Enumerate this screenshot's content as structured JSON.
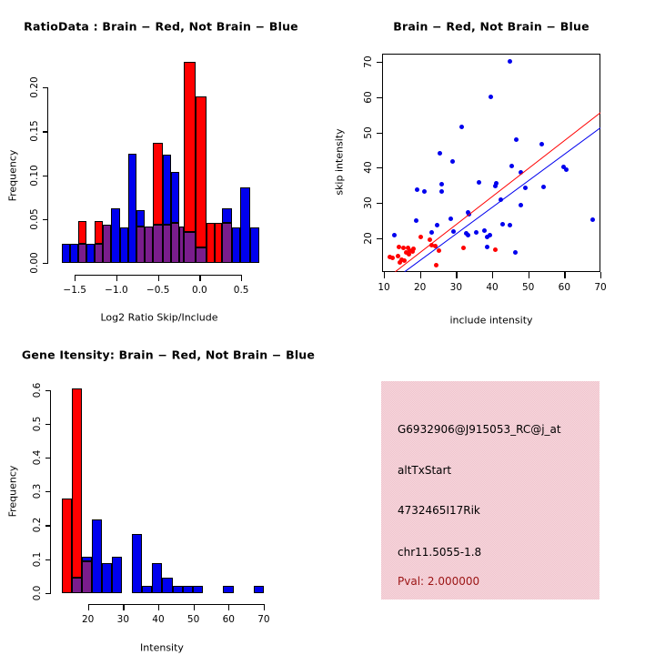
{
  "colors": {
    "red": "#ff0000",
    "blue": "#0000ee",
    "purple": "#7a1d8c",
    "pval_red": "#9b1414",
    "pink_panel": "#f3c9d3",
    "axis_black": "#000000",
    "background": "#ffffff"
  },
  "chart_data": [
    {
      "id": "ratio_histogram",
      "type": "bar",
      "title": "RatioData : Brain − Red, Not Brain − Blue",
      "xlabel": "Log2 Ratio Skip/Include",
      "ylabel": "Frequency",
      "legend_note": "red = Brain, blue = Not Brain, purple = overlap",
      "xlim": [
        -1.7,
        0.8
      ],
      "ylim": [
        0,
        0.24
      ],
      "x_ticks": [
        {
          "v": -1.5,
          "label": "−1.5"
        },
        {
          "v": -1.0,
          "label": "−1.0"
        },
        {
          "v": -0.5,
          "label": "−0.5"
        },
        {
          "v": 0.0,
          "label": "0.0"
        },
        {
          "v": 0.5,
          "label": "0.5"
        }
      ],
      "y_ticks": [
        {
          "v": 0.0,
          "label": "0.00"
        },
        {
          "v": 0.05,
          "label": "0.05"
        },
        {
          "v": 0.1,
          "label": "0.10"
        },
        {
          "v": 0.15,
          "label": "0.15"
        },
        {
          "v": 0.2,
          "label": "0.20"
        }
      ],
      "bars": [
        {
          "x1": -1.66,
          "x2": -1.56,
          "color": "blue",
          "h": 0.022,
          "ov": 0
        },
        {
          "x1": -1.56,
          "x2": -1.46,
          "color": "blue",
          "h": 0.022,
          "ov": 0
        },
        {
          "x1": -1.46,
          "x2": -1.36,
          "color": "red",
          "h": 0.048,
          "ov": 0.022
        },
        {
          "x1": -1.36,
          "x2": -1.26,
          "color": "blue",
          "h": 0.022,
          "ov": 0
        },
        {
          "x1": -1.26,
          "x2": -1.16,
          "color": "red",
          "h": 0.048,
          "ov": 0.022
        },
        {
          "x1": -1.16,
          "x2": -1.06,
          "color": "purple",
          "h": 0.044,
          "ov": 0.044
        },
        {
          "x1": -1.06,
          "x2": -0.96,
          "color": "blue",
          "h": 0.062,
          "ov": 0
        },
        {
          "x1": -0.96,
          "x2": -0.86,
          "color": "blue",
          "h": 0.041,
          "ov": 0
        },
        {
          "x1": -0.86,
          "x2": -0.76,
          "color": "blue",
          "h": 0.125,
          "ov": 0
        },
        {
          "x1": -0.76,
          "x2": -0.66,
          "color": "blue",
          "h": 0.06,
          "ov": 0.042
        },
        {
          "x1": -0.66,
          "x2": -0.56,
          "color": "purple",
          "h": 0.042,
          "ov": 0.042
        },
        {
          "x1": -0.56,
          "x2": -0.44,
          "color": "red",
          "h": 0.137,
          "ov": 0.044
        },
        {
          "x1": -0.44,
          "x2": -0.34,
          "color": "blue",
          "h": 0.124,
          "ov": 0.044
        },
        {
          "x1": -0.34,
          "x2": -0.24,
          "color": "blue",
          "h": 0.104,
          "ov": 0.046
        },
        {
          "x1": -0.24,
          "x2": -0.19,
          "color": "purple",
          "h": 0.042,
          "ov": 0.042
        },
        {
          "x1": -0.19,
          "x2": -0.05,
          "color": "red",
          "h": 0.229,
          "ov": 0.035
        },
        {
          "x1": -0.05,
          "x2": 0.08,
          "color": "red",
          "h": 0.19,
          "ov": 0.018
        },
        {
          "x1": 0.08,
          "x2": 0.18,
          "color": "red",
          "h": 0.046,
          "ov": 0
        },
        {
          "x1": 0.18,
          "x2": 0.27,
          "color": "red",
          "h": 0.046,
          "ov": 0
        },
        {
          "x1": 0.27,
          "x2": 0.39,
          "color": "blue",
          "h": 0.062,
          "ov": 0.046
        },
        {
          "x1": 0.39,
          "x2": 0.49,
          "color": "blue",
          "h": 0.041,
          "ov": 0
        },
        {
          "x1": 0.49,
          "x2": 0.61,
          "color": "blue",
          "h": 0.086,
          "ov": 0
        },
        {
          "x1": 0.61,
          "x2": 0.72,
          "color": "blue",
          "h": 0.041,
          "ov": 0
        }
      ]
    },
    {
      "id": "intensity_scatter",
      "type": "scatter",
      "title": "Brain − Red, Not Brain − Blue",
      "xlabel": "include intensity",
      "ylabel": "skip intensity",
      "xlim": [
        9.3,
        70.1
      ],
      "ylim": [
        10.5,
        72.6
      ],
      "x_ticks": [
        {
          "v": 10,
          "label": "10"
        },
        {
          "v": 20,
          "label": "20"
        },
        {
          "v": 30,
          "label": "30"
        },
        {
          "v": 40,
          "label": "40"
        },
        {
          "v": 50,
          "label": "50"
        },
        {
          "v": 60,
          "label": "60"
        },
        {
          "v": 70,
          "label": "70"
        }
      ],
      "y_ticks": [
        {
          "v": 20,
          "label": "20"
        },
        {
          "v": 30,
          "label": "30"
        },
        {
          "v": 40,
          "label": "40"
        },
        {
          "v": 50,
          "label": "50"
        },
        {
          "v": 60,
          "label": "60"
        },
        {
          "v": 70,
          "label": "70"
        }
      ],
      "series": [
        {
          "name": "Not Brain",
          "color": "blue",
          "points": [
            [
              44.8,
              70.2
            ],
            [
              39.7,
              60.2
            ],
            [
              31.5,
              51.6
            ],
            [
              46.8,
              47.9
            ],
            [
              53.7,
              46.6
            ],
            [
              25.4,
              44.1
            ],
            [
              29.0,
              41.7
            ],
            [
              45.5,
              40.5
            ],
            [
              59.8,
              40.3
            ],
            [
              60.6,
              39.4
            ],
            [
              47.9,
              38.7
            ],
            [
              36.3,
              35.7
            ],
            [
              41.2,
              35.6
            ],
            [
              41.0,
              34.8
            ],
            [
              49.1,
              34.3
            ],
            [
              54.2,
              34.6
            ],
            [
              19.1,
              33.8
            ],
            [
              21.1,
              33.2
            ],
            [
              25.9,
              35.4
            ],
            [
              26.0,
              33.3
            ],
            [
              42.3,
              30.9
            ],
            [
              47.9,
              29.3
            ],
            [
              33.2,
              27.3
            ],
            [
              33.6,
              26.7
            ],
            [
              28.5,
              25.5
            ],
            [
              18.9,
              25.0
            ],
            [
              67.9,
              25.3
            ],
            [
              42.8,
              23.9
            ],
            [
              44.9,
              23.6
            ],
            [
              24.8,
              23.6
            ],
            [
              29.3,
              21.9
            ],
            [
              13.0,
              20.7
            ],
            [
              32.8,
              21.3
            ],
            [
              33.4,
              20.9
            ],
            [
              35.7,
              21.7
            ],
            [
              37.9,
              22.1
            ],
            [
              23.2,
              21.5
            ],
            [
              38.6,
              20.3
            ],
            [
              39.3,
              20.7
            ],
            [
              38.5,
              17.4
            ],
            [
              46.4,
              15.9
            ]
          ]
        },
        {
          "name": "Brain",
          "color": "red",
          "points": [
            [
              20.1,
              20.3
            ],
            [
              22.7,
              19.6
            ],
            [
              23.3,
              18.0
            ],
            [
              24.3,
              17.7
            ],
            [
              25.2,
              16.4
            ],
            [
              32.0,
              17.2
            ],
            [
              40.8,
              16.6
            ],
            [
              15.4,
              17.3
            ],
            [
              16.6,
              17.1
            ],
            [
              17.3,
              16.5
            ],
            [
              18.2,
              16.9
            ],
            [
              17.9,
              16.1
            ],
            [
              17.0,
              15.5
            ],
            [
              14.1,
              17.5
            ],
            [
              16.2,
              16.0
            ],
            [
              13.8,
              14.9
            ],
            [
              11.6,
              14.6
            ],
            [
              12.4,
              14.3
            ],
            [
              15.0,
              13.9
            ],
            [
              15.6,
              13.6
            ],
            [
              14.5,
              13.0
            ],
            [
              24.6,
              12.4
            ]
          ]
        }
      ],
      "fit_lines": [
        {
          "color": "red",
          "p1": [
            13.0,
            10.54
          ],
          "p2": [
            69.95,
            55.8
          ]
        },
        {
          "color": "blue",
          "p1": [
            15.6,
            10.54
          ],
          "p2": [
            69.95,
            51.5
          ]
        }
      ]
    },
    {
      "id": "gene_intensity_histogram",
      "type": "bar",
      "title": "Gene Itensity: Brain − Red, Not Brain − Blue",
      "xlabel": "Intensity",
      "ylabel": "Frequency",
      "legend_note": "red = Brain, blue = Not Brain, purple = overlap",
      "xlim": [
        12,
        71
      ],
      "ylim": [
        0,
        0.62
      ],
      "x_ticks": [
        {
          "v": 20,
          "label": "20"
        },
        {
          "v": 30,
          "label": "30"
        },
        {
          "v": 40,
          "label": "40"
        },
        {
          "v": 50,
          "label": "50"
        },
        {
          "v": 60,
          "label": "60"
        },
        {
          "v": 70,
          "label": "70"
        }
      ],
      "y_ticks": [
        {
          "v": 0.0,
          "label": "0.0"
        },
        {
          "v": 0.1,
          "label": "0.1"
        },
        {
          "v": 0.2,
          "label": "0.2"
        },
        {
          "v": 0.3,
          "label": "0.3"
        },
        {
          "v": 0.4,
          "label": "0.4"
        },
        {
          "v": 0.5,
          "label": "0.5"
        },
        {
          "v": 0.6,
          "label": "0.6"
        }
      ],
      "bars": [
        {
          "x1": 12.56,
          "x2": 15.42,
          "color": "red",
          "h": 0.28,
          "ov": 0
        },
        {
          "x1": 15.42,
          "x2": 18.28,
          "color": "red",
          "h": 0.605,
          "ov": 0.045
        },
        {
          "x1": 18.28,
          "x2": 21.14,
          "color": "blue",
          "h": 0.108,
          "ov": 0.094
        },
        {
          "x1": 21.14,
          "x2": 24.0,
          "color": "blue",
          "h": 0.217,
          "ov": 0
        },
        {
          "x1": 24.0,
          "x2": 26.86,
          "color": "blue",
          "h": 0.087,
          "ov": 0
        },
        {
          "x1": 26.86,
          "x2": 29.72,
          "color": "blue",
          "h": 0.108,
          "ov": 0
        },
        {
          "x1": 32.58,
          "x2": 35.44,
          "color": "blue",
          "h": 0.175,
          "ov": 0
        },
        {
          "x1": 35.44,
          "x2": 38.3,
          "color": "blue",
          "h": 0.022,
          "ov": 0
        },
        {
          "x1": 38.3,
          "x2": 41.16,
          "color": "blue",
          "h": 0.087,
          "ov": 0
        },
        {
          "x1": 41.16,
          "x2": 44.02,
          "color": "blue",
          "h": 0.044,
          "ov": 0
        },
        {
          "x1": 44.02,
          "x2": 46.88,
          "color": "blue",
          "h": 0.022,
          "ov": 0
        },
        {
          "x1": 46.88,
          "x2": 49.74,
          "color": "blue",
          "h": 0.022,
          "ov": 0
        },
        {
          "x1": 49.74,
          "x2": 52.6,
          "color": "blue",
          "h": 0.022,
          "ov": 0
        },
        {
          "x1": 58.5,
          "x2": 61.36,
          "color": "blue",
          "h": 0.022,
          "ov": 0
        },
        {
          "x1": 67.1,
          "x2": 69.96,
          "color": "blue",
          "h": 0.022,
          "ov": 0
        }
      ]
    },
    {
      "id": "gene_info_panel",
      "type": "table",
      "lines": [
        "G6932906@J915053_RC@j_at",
        "altTxStart",
        "4732465I17Rik",
        "chr11.5055-1.8"
      ],
      "pval": "Pval: 2.000000"
    }
  ]
}
